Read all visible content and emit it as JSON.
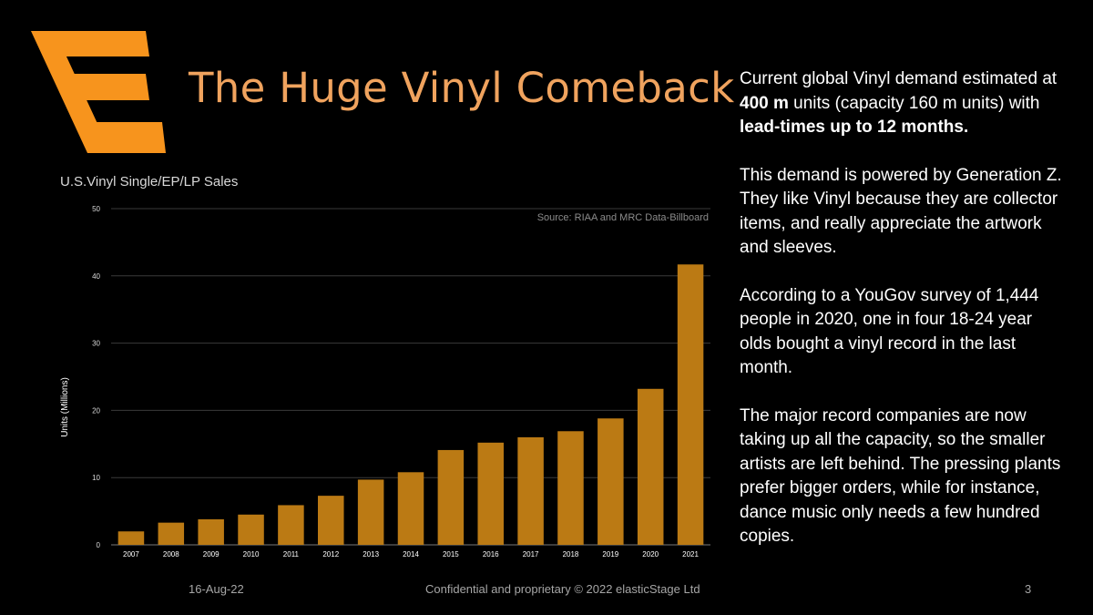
{
  "title": "The Huge Vinyl Comeback",
  "colors": {
    "accent": "#f7941d",
    "bar": "#bb7a14",
    "title": "#f0a35e",
    "gridline": "#3a3a3a"
  },
  "chart_data": {
    "type": "bar",
    "title": "U.S.Vinyl Single/EP/LP Sales",
    "source": "Source: RIAA and MRC Data-Billboard",
    "xlabel": "",
    "ylabel": "Units (Millions)",
    "ylim": [
      0,
      50
    ],
    "yticks": [
      0,
      10,
      20,
      30,
      40,
      50
    ],
    "grid": true,
    "categories": [
      "2007",
      "2008",
      "2009",
      "2010",
      "2011",
      "2012",
      "2013",
      "2014",
      "2015",
      "2016",
      "2017",
      "2018",
      "2019",
      "2020",
      "2021"
    ],
    "values": [
      2.0,
      3.3,
      3.8,
      4.5,
      5.9,
      7.3,
      9.7,
      10.8,
      14.1,
      15.2,
      16.0,
      16.9,
      18.8,
      23.2,
      41.7
    ]
  },
  "body": {
    "p1_a": "Current global Vinyl demand estimated at ",
    "p1_b": "400 m",
    "p1_c": " units (capacity 160 m units) with ",
    "p1_d": "lead-times up to 12 months.",
    "p2": "This demand is powered by Generation Z. They like Vinyl because they are collector items, and really appreciate the artwork and sleeves.",
    "p3": "According to a YouGov survey of 1,444 people in 2020, one in four 18-24 year olds bought a vinyl record in the last month.",
    "p4": "The major record companies are now taking up all the capacity, so the smaller artists are left behind. The pressing plants prefer bigger orders, while for instance, dance music only needs a few hundred copies."
  },
  "footer": {
    "date": "16-Aug-22",
    "confidential": "Confidential and proprietary © 2022 elasticStage Ltd",
    "page": "3"
  }
}
